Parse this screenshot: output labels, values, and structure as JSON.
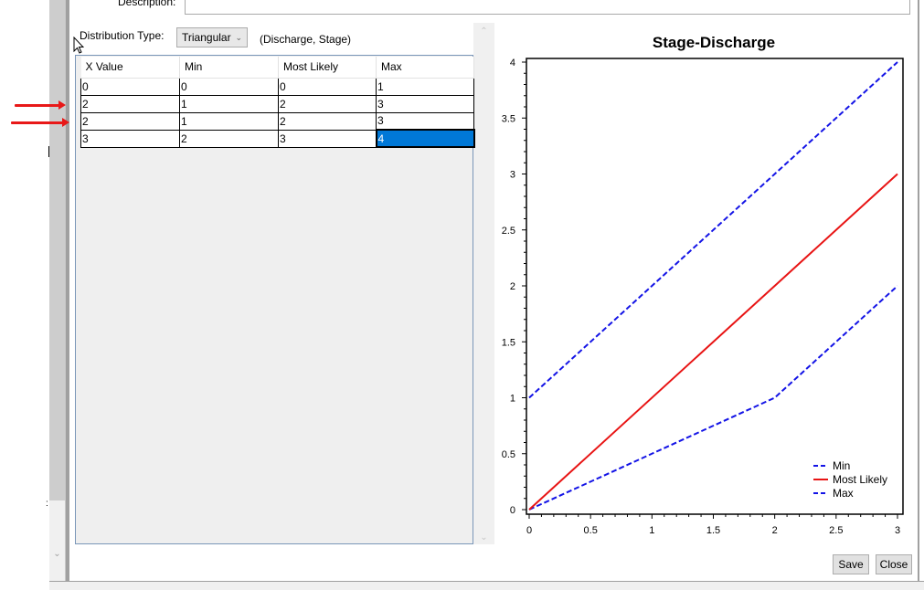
{
  "description": {
    "label": "Description:",
    "value": ""
  },
  "distribution": {
    "label": "Distribution Type:",
    "selected": "Triangular",
    "axis_caption": "(Discharge, Stage)"
  },
  "grid": {
    "columns": [
      "X Value",
      "Min",
      "Most Likely",
      "Max"
    ],
    "rows": [
      [
        "0",
        "0",
        "0",
        "1"
      ],
      [
        "2",
        "1",
        "2",
        "3"
      ],
      [
        "2",
        "1",
        "2",
        "3"
      ],
      [
        "3",
        "2",
        "3",
        "4"
      ]
    ],
    "selected_cell": {
      "row": 3,
      "col": 3
    }
  },
  "buttons": {
    "save": "Save",
    "close": "Close"
  },
  "annotations": {
    "arrows_pointing_to_rows": [
      1,
      2
    ],
    "arrow_color": "#e81818"
  },
  "colors": {
    "min_max_line": "#1414e6",
    "most_likely_line": "#e81414",
    "selection": "#0078d7"
  },
  "chart_data": {
    "type": "line",
    "title": "Stage-Discharge",
    "xlabel": "",
    "ylabel": "",
    "x": [
      0,
      2,
      2,
      3
    ],
    "xlim": [
      0,
      3
    ],
    "ylim": [
      0,
      4
    ],
    "x_ticks": [
      "0",
      "0.5",
      "1",
      "1.5",
      "2",
      "2.5",
      "3"
    ],
    "y_ticks": [
      "0",
      "0.5",
      "1",
      "1.5",
      "2",
      "2.5",
      "3",
      "3.5",
      "4"
    ],
    "grid": false,
    "legend_position": "lower right",
    "series": [
      {
        "name": "Min",
        "values": [
          0,
          1,
          1,
          2
        ],
        "style": "dashed",
        "color": "#1414e6"
      },
      {
        "name": "Most Likely",
        "values": [
          0,
          2,
          2,
          3
        ],
        "style": "solid",
        "color": "#e81414"
      },
      {
        "name": "Max",
        "values": [
          1,
          3,
          3,
          4
        ],
        "style": "dashed",
        "color": "#1414e6"
      }
    ]
  }
}
